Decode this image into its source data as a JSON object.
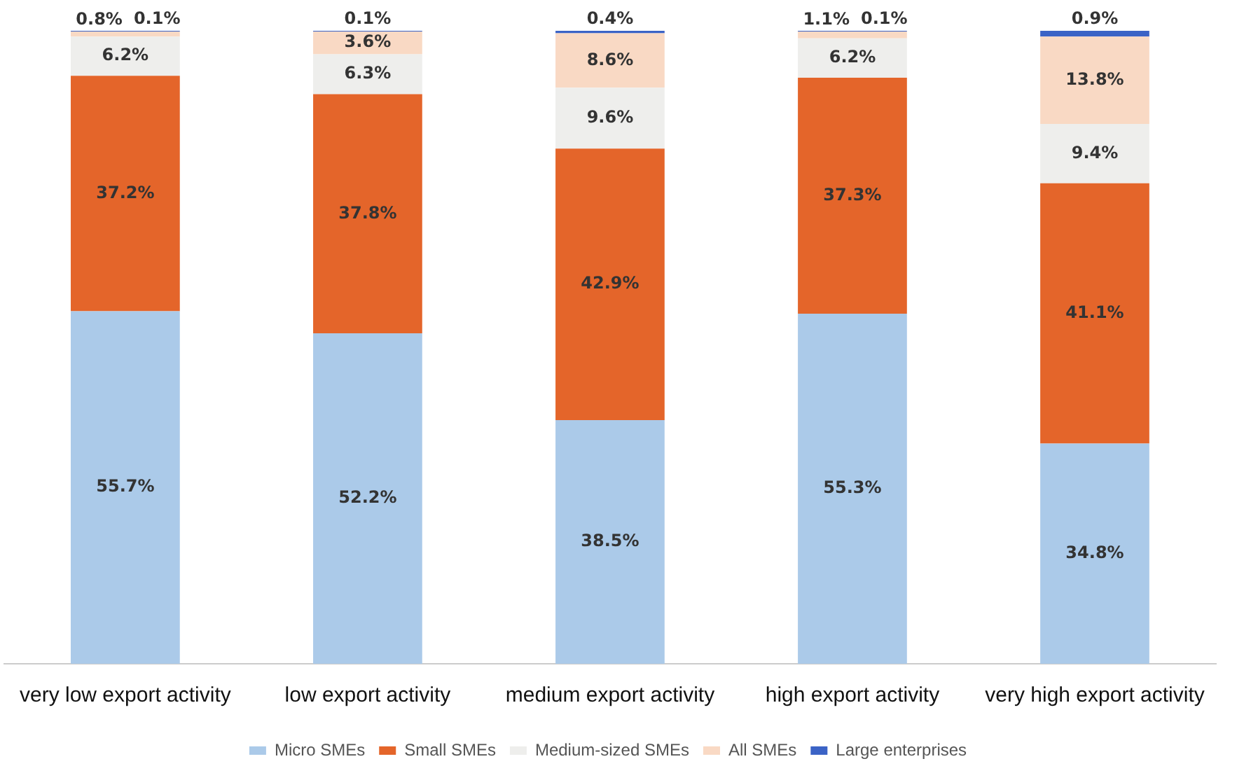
{
  "chart_data": {
    "type": "bar",
    "stacked": true,
    "legend": "bottom",
    "grid": false,
    "tick_labels": "x",
    "categories": [
      "very low export activity",
      "low export activity",
      "medium export activity",
      "high export activity",
      "very high export activity"
    ],
    "series": [
      {
        "name": "Micro SMEs",
        "color": "#abcae9",
        "values": [
          55.7,
          52.2,
          38.5,
          55.3,
          34.8
        ],
        "value_labels": [
          "55.7%",
          "52.2%",
          "38.5%",
          "55.3%",
          "34.8%"
        ]
      },
      {
        "name": "Small SMEs",
        "color": "#e4652a",
        "values": [
          37.2,
          37.8,
          42.9,
          37.3,
          41.1
        ],
        "value_labels": [
          "37.2%",
          "37.8%",
          "42.9%",
          "37.3%",
          "41.1%"
        ]
      },
      {
        "name": "Medium-sized SMEs",
        "color": "#eeeeec",
        "values": [
          6.2,
          6.3,
          9.6,
          6.2,
          9.4
        ],
        "value_labels": [
          "6.2%",
          "6.3%",
          "9.6%",
          "6.2%",
          "9.4%"
        ]
      },
      {
        "name": "All SMEs",
        "color": "#f9d9c4",
        "values": [
          0.8,
          3.6,
          8.6,
          1.1,
          13.8
        ],
        "value_labels": [
          "0.8%",
          "3.6%",
          "8.6%",
          "1.1%",
          "13.8%"
        ]
      },
      {
        "name": "Large enterprises",
        "color": "#3b63c6",
        "values": [
          0.1,
          0.1,
          0.4,
          0.1,
          0.9
        ],
        "value_labels": [
          "0.1%",
          "0.1%",
          "0.4%",
          "0.1%",
          "0.9%"
        ]
      }
    ]
  }
}
